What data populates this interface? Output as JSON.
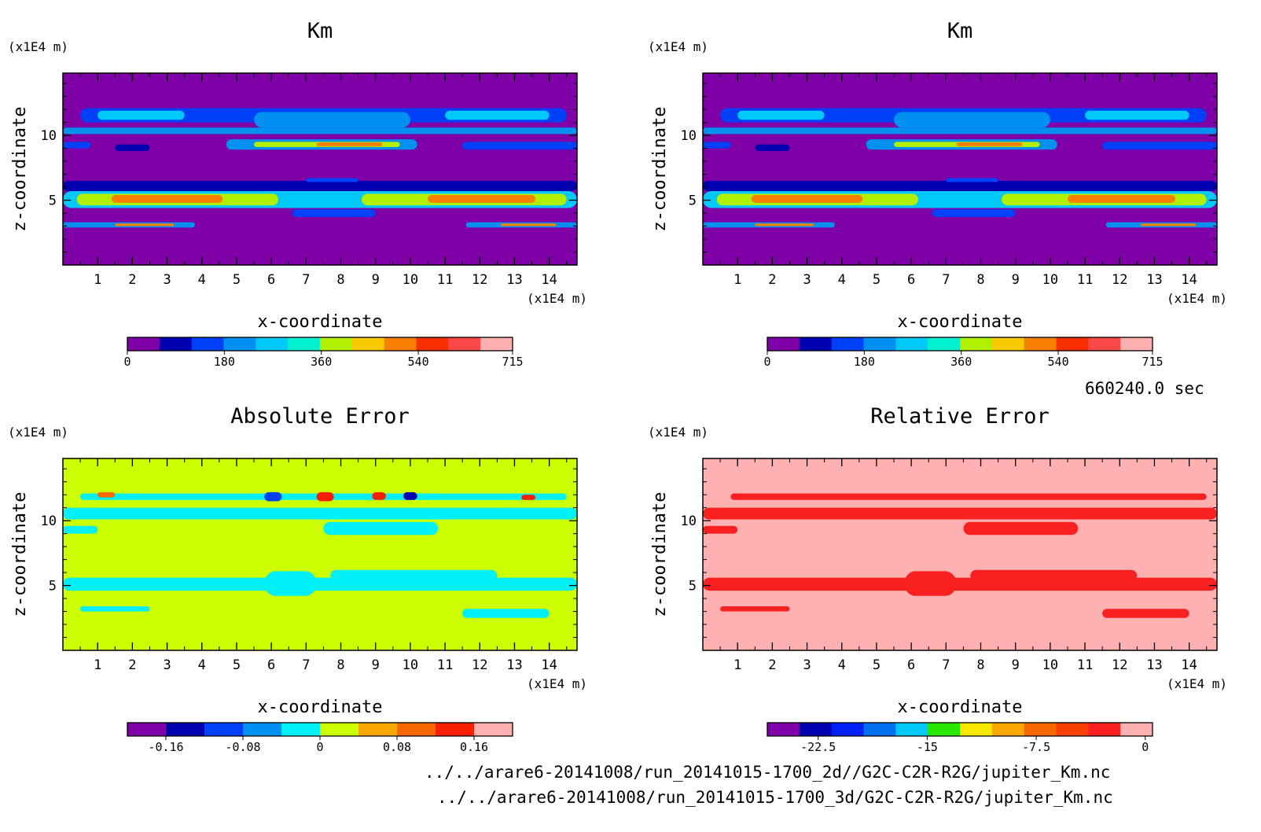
{
  "time_label": "660240.0 sec",
  "file_paths": [
    "../../arare6-20141008/run_20141015-1700_2d//G2C-C2R-R2G/jupiter_Km.nc",
    "../../arare6-20141008/run_20141015-1700_3d/G2C-C2R-R2G/jupiter_Km.nc"
  ],
  "chart_data": [
    {
      "type": "heatmap",
      "id": "km_2d",
      "title": "Km",
      "xlabel": "x-coordinate",
      "ylabel": "z-coordinate",
      "x_unit": "(x1E4 m)",
      "y_unit": "(x1E4 m)",
      "xlim": [
        0,
        14.8
      ],
      "ylim": [
        0,
        14.8
      ],
      "x_ticks": [
        1,
        2,
        3,
        4,
        5,
        6,
        7,
        8,
        9,
        10,
        11,
        12,
        13,
        14
      ],
      "y_ticks": [
        5,
        10
      ],
      "background_color": "#7f00a6",
      "colorbar": {
        "colors": [
          "#7f00a6",
          "#0000b0",
          "#0040f8",
          "#0090f0",
          "#00c8f8",
          "#00f0d0",
          "#b0f000",
          "#f8c800",
          "#f88000",
          "#f83000",
          "#f84848",
          "#ffb0b0"
        ],
        "tick_values": [
          0,
          180,
          360,
          540,
          715
        ],
        "tick_labels": [
          "0",
          "180",
          "360",
          "540",
          "715"
        ]
      },
      "bands": [
        {
          "x": [
            0,
            14.8
          ],
          "y": [
            5.7,
            6.5
          ],
          "c": 1
        },
        {
          "x": [
            0,
            14.8
          ],
          "y": [
            4.4,
            5.7
          ],
          "c": 4
        },
        {
          "x": [
            0.4,
            6.2
          ],
          "y": [
            4.6,
            5.5
          ],
          "c": 6
        },
        {
          "x": [
            8.6,
            14.5
          ],
          "y": [
            4.6,
            5.5
          ],
          "c": 6
        },
        {
          "x": [
            1.4,
            4.6
          ],
          "y": [
            4.8,
            5.4
          ],
          "c": 8
        },
        {
          "x": [
            10.5,
            13.6
          ],
          "y": [
            4.8,
            5.4
          ],
          "c": 8
        },
        {
          "x": [
            0,
            3.8
          ],
          "y": [
            2.9,
            3.3
          ],
          "c": 3
        },
        {
          "x": [
            11.6,
            14.8
          ],
          "y": [
            2.9,
            3.3
          ],
          "c": 3
        },
        {
          "x": [
            1.5,
            3.2
          ],
          "y": [
            3.0,
            3.2
          ],
          "c": 8
        },
        {
          "x": [
            12.6,
            14.2
          ],
          "y": [
            3.0,
            3.2
          ],
          "c": 8
        },
        {
          "x": [
            7.0,
            8.5
          ],
          "y": [
            6.4,
            6.7
          ],
          "c": 2
        },
        {
          "x": [
            6.6,
            9.0
          ],
          "y": [
            3.7,
            4.3
          ],
          "c": 2
        },
        {
          "x": [
            0,
            14.8
          ],
          "y": [
            10.1,
            10.6
          ],
          "c": 3
        },
        {
          "x": [
            0.5,
            14.5
          ],
          "y": [
            11.0,
            12.1
          ],
          "c": 2
        },
        {
          "x": [
            1.0,
            3.5
          ],
          "y": [
            11.2,
            11.9
          ],
          "c": 4
        },
        {
          "x": [
            5.5,
            10.0
          ],
          "y": [
            10.6,
            11.8
          ],
          "c": 3
        },
        {
          "x": [
            11.0,
            14.0
          ],
          "y": [
            11.2,
            11.9
          ],
          "c": 4
        },
        {
          "x": [
            4.7,
            10.2
          ],
          "y": [
            8.9,
            9.7
          ],
          "c": 3
        },
        {
          "x": [
            5.5,
            9.7
          ],
          "y": [
            9.1,
            9.5
          ],
          "c": 6
        },
        {
          "x": [
            7.3,
            9.2
          ],
          "y": [
            9.15,
            9.45
          ],
          "c": 8
        },
        {
          "x": [
            0,
            0.8
          ],
          "y": [
            9.0,
            9.5
          ],
          "c": 2
        },
        {
          "x": [
            1.5,
            2.5
          ],
          "y": [
            8.8,
            9.3
          ],
          "c": 1
        },
        {
          "x": [
            11.5,
            14.8
          ],
          "y": [
            8.9,
            9.5
          ],
          "c": 2
        }
      ]
    },
    {
      "type": "heatmap",
      "id": "km_3d",
      "title": "Km",
      "xlabel": "x-coordinate",
      "ylabel": "z-coordinate",
      "x_unit": "(x1E4 m)",
      "y_unit": "(x1E4 m)",
      "xlim": [
        0,
        14.8
      ],
      "ylim": [
        0,
        14.8
      ],
      "x_ticks": [
        1,
        2,
        3,
        4,
        5,
        6,
        7,
        8,
        9,
        10,
        11,
        12,
        13,
        14
      ],
      "y_ticks": [
        5,
        10
      ],
      "background_color": "#7f00a6",
      "colorbar": {
        "colors": [
          "#7f00a6",
          "#0000b0",
          "#0040f8",
          "#0090f0",
          "#00c8f8",
          "#00f0d0",
          "#b0f000",
          "#f8c800",
          "#f88000",
          "#f83000",
          "#f84848",
          "#ffb0b0"
        ],
        "tick_values": [
          0,
          180,
          360,
          540,
          715
        ],
        "tick_labels": [
          "0",
          "180",
          "360",
          "540",
          "715"
        ]
      },
      "bands": [
        {
          "x": [
            0,
            14.8
          ],
          "y": [
            5.7,
            6.5
          ],
          "c": 1
        },
        {
          "x": [
            0,
            14.8
          ],
          "y": [
            4.4,
            5.7
          ],
          "c": 4
        },
        {
          "x": [
            0.4,
            6.2
          ],
          "y": [
            4.6,
            5.5
          ],
          "c": 6
        },
        {
          "x": [
            8.6,
            14.5
          ],
          "y": [
            4.6,
            5.5
          ],
          "c": 6
        },
        {
          "x": [
            1.4,
            4.6
          ],
          "y": [
            4.8,
            5.4
          ],
          "c": 8
        },
        {
          "x": [
            10.5,
            13.6
          ],
          "y": [
            4.8,
            5.4
          ],
          "c": 8
        },
        {
          "x": [
            0,
            3.8
          ],
          "y": [
            2.9,
            3.3
          ],
          "c": 3
        },
        {
          "x": [
            11.6,
            14.8
          ],
          "y": [
            2.9,
            3.3
          ],
          "c": 3
        },
        {
          "x": [
            1.5,
            3.2
          ],
          "y": [
            3.0,
            3.2
          ],
          "c": 8
        },
        {
          "x": [
            12.6,
            14.2
          ],
          "y": [
            3.0,
            3.2
          ],
          "c": 8
        },
        {
          "x": [
            7.0,
            8.5
          ],
          "y": [
            6.4,
            6.7
          ],
          "c": 2
        },
        {
          "x": [
            6.6,
            9.0
          ],
          "y": [
            3.7,
            4.3
          ],
          "c": 2
        },
        {
          "x": [
            0,
            14.8
          ],
          "y": [
            10.1,
            10.6
          ],
          "c": 3
        },
        {
          "x": [
            0.5,
            14.5
          ],
          "y": [
            11.0,
            12.1
          ],
          "c": 2
        },
        {
          "x": [
            1.0,
            3.5
          ],
          "y": [
            11.2,
            11.9
          ],
          "c": 4
        },
        {
          "x": [
            5.5,
            10.0
          ],
          "y": [
            10.6,
            11.8
          ],
          "c": 3
        },
        {
          "x": [
            11.0,
            14.0
          ],
          "y": [
            11.2,
            11.9
          ],
          "c": 4
        },
        {
          "x": [
            4.7,
            10.2
          ],
          "y": [
            8.9,
            9.7
          ],
          "c": 3
        },
        {
          "x": [
            5.5,
            9.7
          ],
          "y": [
            9.1,
            9.5
          ],
          "c": 6
        },
        {
          "x": [
            7.3,
            9.2
          ],
          "y": [
            9.15,
            9.45
          ],
          "c": 8
        },
        {
          "x": [
            0,
            0.8
          ],
          "y": [
            9.0,
            9.5
          ],
          "c": 2
        },
        {
          "x": [
            1.5,
            2.5
          ],
          "y": [
            8.8,
            9.3
          ],
          "c": 1
        },
        {
          "x": [
            11.5,
            14.8
          ],
          "y": [
            8.9,
            9.5
          ],
          "c": 2
        }
      ]
    },
    {
      "type": "heatmap",
      "id": "absolute_error",
      "title": "Absolute Error",
      "xlabel": "x-coordinate",
      "ylabel": "z-coordinate",
      "x_unit": "(x1E4 m)",
      "y_unit": "(x1E4 m)",
      "xlim": [
        0,
        14.8
      ],
      "ylim": [
        0,
        14.8
      ],
      "x_ticks": [
        1,
        2,
        3,
        4,
        5,
        6,
        7,
        8,
        9,
        10,
        11,
        12,
        13,
        14
      ],
      "y_ticks": [
        5,
        10
      ],
      "background_color": "#ccff00",
      "colorbar": {
        "colors": [
          "#7f00a6",
          "#0000b0",
          "#0040f8",
          "#0090f0",
          "#00f0f8",
          "#ccff00",
          "#f8a800",
          "#f86800",
          "#f82000",
          "#ffb0b0"
        ],
        "tick_values": [
          -0.16,
          -0.08,
          0,
          0.08,
          0.16
        ],
        "tick_labels": [
          "-0.16",
          "-0.08",
          "0",
          "0.08",
          "0.16"
        ],
        "range": [
          -0.2,
          0.2
        ]
      },
      "bands": [
        {
          "x": [
            0,
            14.8
          ],
          "y": [
            10.1,
            11.0
          ],
          "c": 4
        },
        {
          "x": [
            0.5,
            14.5
          ],
          "y": [
            11.6,
            12.1
          ],
          "c": 4
        },
        {
          "x": [
            0,
            1.0
          ],
          "y": [
            9.0,
            9.6
          ],
          "c": 4
        },
        {
          "x": [
            7.5,
            10.8
          ],
          "y": [
            8.9,
            9.9
          ],
          "c": 4
        },
        {
          "x": [
            0,
            14.8
          ],
          "y": [
            4.6,
            5.6
          ],
          "c": 4
        },
        {
          "x": [
            5.8,
            7.3
          ],
          "y": [
            4.2,
            6.1
          ],
          "c": 4
        },
        {
          "x": [
            7.7,
            12.5
          ],
          "y": [
            5.3,
            6.2
          ],
          "c": 4
        },
        {
          "x": [
            0.5,
            2.5
          ],
          "y": [
            3.0,
            3.4
          ],
          "c": 4
        },
        {
          "x": [
            11.5,
            14.0
          ],
          "y": [
            2.5,
            3.2
          ],
          "c": 4
        },
        {
          "x": [
            1.0,
            1.5
          ],
          "y": [
            11.8,
            12.2
          ],
          "c": 7
        },
        {
          "x": [
            5.8,
            6.3
          ],
          "y": [
            11.5,
            12.2
          ],
          "c": 2
        },
        {
          "x": [
            7.3,
            7.8
          ],
          "y": [
            11.5,
            12.2
          ],
          "c": 8
        },
        {
          "x": [
            8.9,
            9.3
          ],
          "y": [
            11.6,
            12.2
          ],
          "c": 8
        },
        {
          "x": [
            9.8,
            10.2
          ],
          "y": [
            11.6,
            12.2
          ],
          "c": 1
        },
        {
          "x": [
            13.2,
            13.6
          ],
          "y": [
            11.6,
            12.0
          ],
          "c": 8
        }
      ]
    },
    {
      "type": "heatmap",
      "id": "relative_error",
      "title": "Relative Error",
      "xlabel": "x-coordinate",
      "ylabel": "z-coordinate",
      "x_unit": "(x1E4 m)",
      "y_unit": "(x1E4 m)",
      "xlim": [
        0,
        14.8
      ],
      "ylim": [
        0,
        14.8
      ],
      "x_ticks": [
        1,
        2,
        3,
        4,
        5,
        6,
        7,
        8,
        9,
        10,
        11,
        12,
        13,
        14
      ],
      "y_ticks": [
        5,
        10
      ],
      "background_color": "#ffb0b0",
      "colorbar": {
        "colors": [
          "#7f00a6",
          "#0000b0",
          "#0020f8",
          "#0070f0",
          "#00c8f8",
          "#28e800",
          "#f8e800",
          "#f8a800",
          "#f86800",
          "#f84000",
          "#f82020",
          "#ffb0b0"
        ],
        "tick_values": [
          -22.5,
          -15,
          -7.5,
          0
        ],
        "tick_labels": [
          "-22.5",
          "-15",
          "-7.5",
          "0"
        ],
        "range": [
          -26,
          0.5
        ]
      },
      "bands": [
        {
          "x": [
            0,
            14.8
          ],
          "y": [
            10.1,
            11.0
          ],
          "c": 10
        },
        {
          "x": [
            0.8,
            14.5
          ],
          "y": [
            11.6,
            12.1
          ],
          "c": 10
        },
        {
          "x": [
            0,
            1.0
          ],
          "y": [
            9.0,
            9.6
          ],
          "c": 10
        },
        {
          "x": [
            7.5,
            10.8
          ],
          "y": [
            8.9,
            9.9
          ],
          "c": 10
        },
        {
          "x": [
            0,
            14.8
          ],
          "y": [
            4.6,
            5.6
          ],
          "c": 10
        },
        {
          "x": [
            5.8,
            7.3
          ],
          "y": [
            4.2,
            6.1
          ],
          "c": 10
        },
        {
          "x": [
            7.7,
            12.5
          ],
          "y": [
            5.3,
            6.2
          ],
          "c": 10
        },
        {
          "x": [
            0.5,
            2.5
          ],
          "y": [
            3.0,
            3.4
          ],
          "c": 10
        },
        {
          "x": [
            11.5,
            14.0
          ],
          "y": [
            2.5,
            3.2
          ],
          "c": 10
        }
      ]
    }
  ]
}
